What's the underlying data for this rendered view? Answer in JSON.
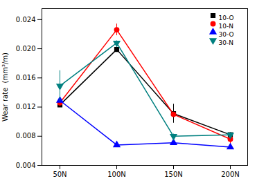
{
  "chart_data": {
    "type": "line",
    "categories": [
      "50N",
      "100N",
      "150N",
      "200N"
    ],
    "series": [
      {
        "name": "10-O",
        "color": "black",
        "marker": "square",
        "values": [
          0.0123,
          0.0199,
          0.0111,
          0.0082
        ],
        "yerr": [
          0.0003,
          0.0003,
          0.0013,
          0.0003
        ]
      },
      {
        "name": "10-N",
        "color": "red",
        "marker": "circle",
        "values": [
          0.0126,
          0.0226,
          0.011,
          0.0076
        ],
        "yerr": [
          0.0005,
          0.0008,
          0.0003,
          0.0007
        ]
      },
      {
        "name": "30-O",
        "color": "blue",
        "marker": "triangle-up",
        "values": [
          0.0129,
          0.0068,
          0.0071,
          0.0065
        ],
        "yerr": [
          0.0002,
          0.0002,
          0.0002,
          0.0002
        ]
      },
      {
        "name": "30-N",
        "color": "teal",
        "marker": "triangle-down",
        "values": [
          0.0149,
          0.0208,
          0.008,
          0.0082
        ],
        "yerr": [
          0.0021,
          0.0003,
          0.0003,
          0.0003
        ]
      }
    ],
    "ylabel": "Wear rate  (mm³/m)",
    "ylim": [
      0.004,
      0.0255
    ],
    "yticks": [
      0.004,
      0.008,
      0.012,
      0.016,
      {
        "value": 0.02,
        "label": "0.020"
      },
      0.024
    ],
    "legend": "upper right"
  }
}
